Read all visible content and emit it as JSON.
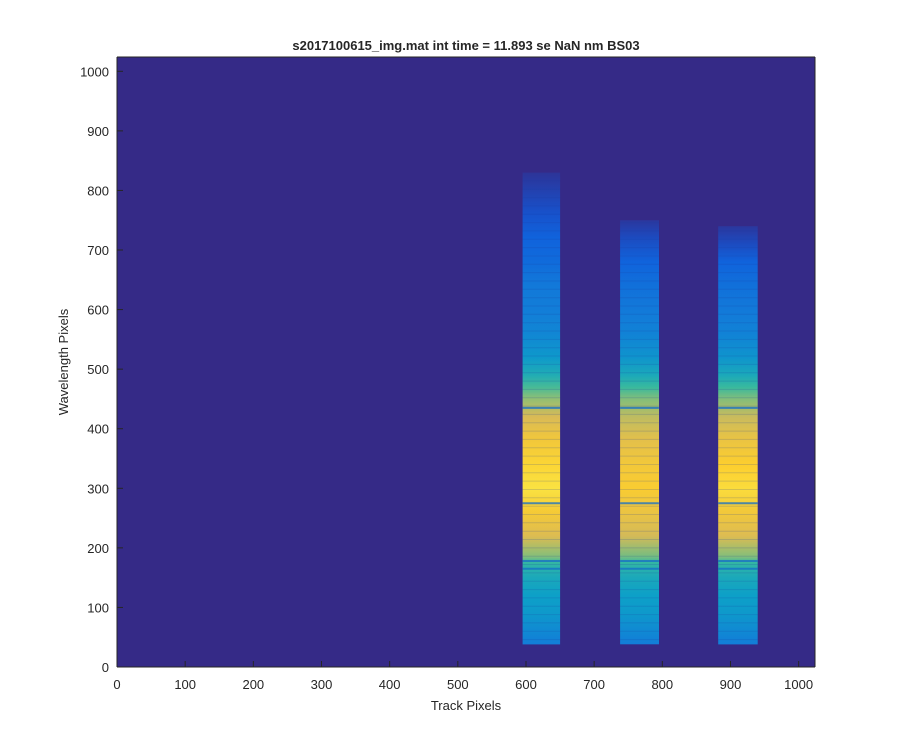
{
  "chart_data": {
    "type": "heatmap",
    "title": "s2017100615_img.mat int time = 11.893 se  NaN nm BS03",
    "xlabel": "Track Pixels",
    "ylabel": "Wavelength Pixels",
    "xlim": [
      0,
      1024
    ],
    "ylim": [
      0,
      1024
    ],
    "x_ticks": [
      0,
      100,
      200,
      300,
      400,
      500,
      600,
      700,
      800,
      900,
      1000
    ],
    "y_ticks": [
      0,
      100,
      200,
      300,
      400,
      500,
      600,
      700,
      800,
      900,
      1000
    ],
    "grid": false,
    "legend": "none",
    "colormap": "parula",
    "colors": {
      "background": "#352a87",
      "low": "#0f5cdd",
      "mid": "#0d9bcf",
      "teal": "#38b99e",
      "high": "#fbc32c",
      "peak": "#f9d24a"
    },
    "bands": [
      {
        "x_start": 595,
        "x_end": 650,
        "y_start": 38,
        "y_end": 830,
        "profile": [
          {
            "y": 38,
            "value": 0.3
          },
          {
            "y": 60,
            "value": 0.35
          },
          {
            "y": 90,
            "value": 0.42
          },
          {
            "y": 120,
            "value": 0.45
          },
          {
            "y": 150,
            "value": 0.5
          },
          {
            "y": 175,
            "value": 0.58
          },
          {
            "y": 185,
            "value": 0.7
          },
          {
            "y": 220,
            "value": 0.86
          },
          {
            "y": 260,
            "value": 0.93
          },
          {
            "y": 300,
            "value": 0.98
          },
          {
            "y": 340,
            "value": 0.96
          },
          {
            "y": 380,
            "value": 0.92
          },
          {
            "y": 420,
            "value": 0.85
          },
          {
            "y": 450,
            "value": 0.72
          },
          {
            "y": 470,
            "value": 0.62
          },
          {
            "y": 490,
            "value": 0.52
          },
          {
            "y": 520,
            "value": 0.42
          },
          {
            "y": 560,
            "value": 0.34
          },
          {
            "y": 600,
            "value": 0.3
          },
          {
            "y": 640,
            "value": 0.28
          },
          {
            "y": 680,
            "value": 0.22
          },
          {
            "y": 720,
            "value": 0.18
          },
          {
            "y": 760,
            "value": 0.12
          },
          {
            "y": 800,
            "value": 0.07
          },
          {
            "y": 830,
            "value": 0.03
          }
        ]
      },
      {
        "x_start": 738,
        "x_end": 795,
        "y_start": 38,
        "y_end": 750,
        "profile": [
          {
            "y": 38,
            "value": 0.3
          },
          {
            "y": 60,
            "value": 0.35
          },
          {
            "y": 90,
            "value": 0.42
          },
          {
            "y": 120,
            "value": 0.45
          },
          {
            "y": 150,
            "value": 0.5
          },
          {
            "y": 175,
            "value": 0.58
          },
          {
            "y": 185,
            "value": 0.68
          },
          {
            "y": 220,
            "value": 0.84
          },
          {
            "y": 260,
            "value": 0.9
          },
          {
            "y": 300,
            "value": 0.94
          },
          {
            "y": 340,
            "value": 0.92
          },
          {
            "y": 380,
            "value": 0.88
          },
          {
            "y": 420,
            "value": 0.8
          },
          {
            "y": 450,
            "value": 0.7
          },
          {
            "y": 470,
            "value": 0.6
          },
          {
            "y": 490,
            "value": 0.5
          },
          {
            "y": 520,
            "value": 0.4
          },
          {
            "y": 560,
            "value": 0.32
          },
          {
            "y": 600,
            "value": 0.28
          },
          {
            "y": 640,
            "value": 0.24
          },
          {
            "y": 680,
            "value": 0.18
          },
          {
            "y": 720,
            "value": 0.1
          },
          {
            "y": 750,
            "value": 0.04
          }
        ]
      },
      {
        "x_start": 882,
        "x_end": 940,
        "y_start": 38,
        "y_end": 740,
        "profile": [
          {
            "y": 38,
            "value": 0.3
          },
          {
            "y": 60,
            "value": 0.35
          },
          {
            "y": 90,
            "value": 0.42
          },
          {
            "y": 120,
            "value": 0.45
          },
          {
            "y": 150,
            "value": 0.5
          },
          {
            "y": 175,
            "value": 0.58
          },
          {
            "y": 185,
            "value": 0.7
          },
          {
            "y": 220,
            "value": 0.86
          },
          {
            "y": 260,
            "value": 0.92
          },
          {
            "y": 300,
            "value": 0.97
          },
          {
            "y": 340,
            "value": 0.95
          },
          {
            "y": 380,
            "value": 0.9
          },
          {
            "y": 420,
            "value": 0.82
          },
          {
            "y": 450,
            "value": 0.7
          },
          {
            "y": 470,
            "value": 0.6
          },
          {
            "y": 490,
            "value": 0.5
          },
          {
            "y": 520,
            "value": 0.4
          },
          {
            "y": 560,
            "value": 0.32
          },
          {
            "y": 600,
            "value": 0.28
          },
          {
            "y": 640,
            "value": 0.24
          },
          {
            "y": 680,
            "value": 0.18
          },
          {
            "y": 710,
            "value": 0.1
          },
          {
            "y": 740,
            "value": 0.04
          }
        ]
      }
    ],
    "dark_lines_y": [
      165,
      178,
      275,
      435
    ]
  }
}
